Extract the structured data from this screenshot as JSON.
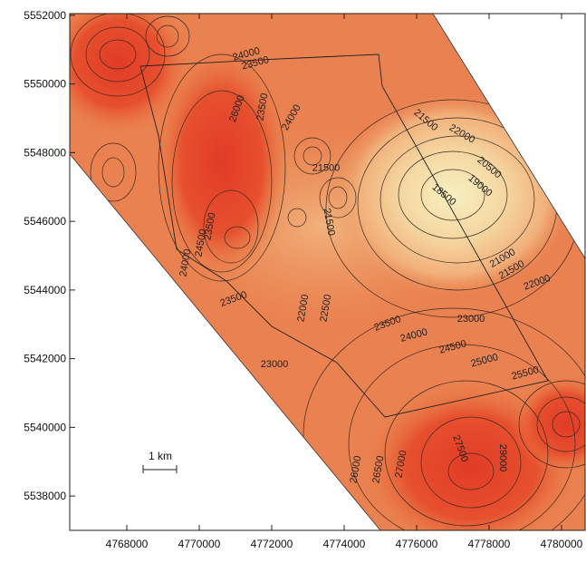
{
  "chart_data": {
    "type": "contour",
    "xlim": [
      4766425,
      4780650
    ],
    "ylim": [
      5537000,
      5552050
    ],
    "xticks": [
      4768000,
      4770000,
      4772000,
      4774000,
      4776000,
      4778000,
      4780000
    ],
    "yticks": [
      5538000,
      5540000,
      5542000,
      5544000,
      5546000,
      5548000,
      5550000,
      5552000
    ],
    "scale_bar": "1 km",
    "contour_labels": [
      {
        "value": 24000,
        "x": 4771300,
        "y": 5550860
      },
      {
        "value": 23500,
        "x": 4771550,
        "y": 5550600
      },
      {
        "value": 26000,
        "x": 4771050,
        "y": 5549280
      },
      {
        "value": 23500,
        "x": 4771750,
        "y": 5549330
      },
      {
        "value": 24000,
        "x": 4772550,
        "y": 5549020
      },
      {
        "value": 21500,
        "x": 4776250,
        "y": 5548940
      },
      {
        "value": 22000,
        "x": 4777250,
        "y": 5548540
      },
      {
        "value": 21500,
        "x": 4773500,
        "y": 5547540
      },
      {
        "value": 20500,
        "x": 4778000,
        "y": 5547560
      },
      {
        "value": 19000,
        "x": 4777750,
        "y": 5547030
      },
      {
        "value": 18500,
        "x": 4776750,
        "y": 5546770
      },
      {
        "value": 21500,
        "x": 4773575,
        "y": 5545980
      },
      {
        "value": 23500,
        "x": 4770300,
        "y": 5545850
      },
      {
        "value": 24500,
        "x": 4770050,
        "y": 5545370
      },
      {
        "value": 24000,
        "x": 4769625,
        "y": 5544790
      },
      {
        "value": 21000,
        "x": 4778375,
        "y": 5544920
      },
      {
        "value": 21500,
        "x": 4778625,
        "y": 5544580
      },
      {
        "value": 22000,
        "x": 4779325,
        "y": 5544210
      },
      {
        "value": 23500,
        "x": 4770950,
        "y": 5543730
      },
      {
        "value": 22000,
        "x": 4772875,
        "y": 5543470
      },
      {
        "value": 22500,
        "x": 4773500,
        "y": 5543470
      },
      {
        "value": 23000,
        "x": 4777500,
        "y": 5543150
      },
      {
        "value": 23500,
        "x": 4775200,
        "y": 5543020
      },
      {
        "value": 24000,
        "x": 4775925,
        "y": 5542670
      },
      {
        "value": 24500,
        "x": 4777000,
        "y": 5542330
      },
      {
        "value": 25000,
        "x": 4777875,
        "y": 5541940
      },
      {
        "value": 25500,
        "x": 4779000,
        "y": 5541570
      },
      {
        "value": 23000,
        "x": 4772075,
        "y": 5541830
      },
      {
        "value": 26000,
        "x": 4774325,
        "y": 5538770
      },
      {
        "value": 26500,
        "x": 4774950,
        "y": 5538770
      },
      {
        "value": 27000,
        "x": 4775575,
        "y": 5538930
      },
      {
        "value": 27500,
        "x": 4777200,
        "y": 5539380
      },
      {
        "value": 29000,
        "x": 4778375,
        "y": 5539110
      }
    ]
  }
}
